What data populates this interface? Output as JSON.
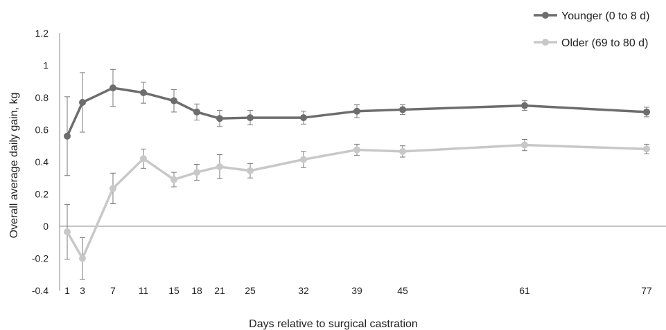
{
  "chart_data": {
    "type": "line",
    "xlabel": "Days relative to surgical castration",
    "ylabel": "Overall average daily gain, kg",
    "ylim": [
      -0.4,
      1.2
    ],
    "yticks": [
      "-0.4",
      "-0.2",
      "0",
      "0.2",
      "0.4",
      "0.6",
      "0.8",
      "1",
      "1.2"
    ],
    "x": [
      1,
      3,
      7,
      11,
      15,
      18,
      21,
      25,
      32,
      39,
      45,
      61,
      77
    ],
    "xticks": [
      "1",
      "3",
      "7",
      "11",
      "15",
      "18",
      "21",
      "25",
      "32",
      "39",
      "45",
      "61",
      "77"
    ],
    "grid": false,
    "legend_position": "top-right",
    "series": [
      {
        "name": "Younger (0 to 8 d)",
        "color": "#6d6d6d",
        "values": [
          0.56,
          0.77,
          0.86,
          0.83,
          0.78,
          0.71,
          0.67,
          0.675,
          0.675,
          0.715,
          0.725,
          0.75,
          0.71
        ],
        "errors": [
          0.245,
          0.185,
          0.115,
          0.065,
          0.07,
          0.05,
          0.05,
          0.045,
          0.04,
          0.04,
          0.03,
          0.03,
          0.03
        ]
      },
      {
        "name": "Older (69 to 80 d)",
        "color": "#c8c8c8",
        "values": [
          -0.035,
          -0.2,
          0.235,
          0.42,
          0.29,
          0.335,
          0.37,
          0.345,
          0.415,
          0.475,
          0.465,
          0.505,
          0.48
        ],
        "errors": [
          0.17,
          0.13,
          0.095,
          0.06,
          0.045,
          0.05,
          0.075,
          0.045,
          0.05,
          0.035,
          0.035,
          0.035,
          0.03
        ]
      }
    ]
  }
}
